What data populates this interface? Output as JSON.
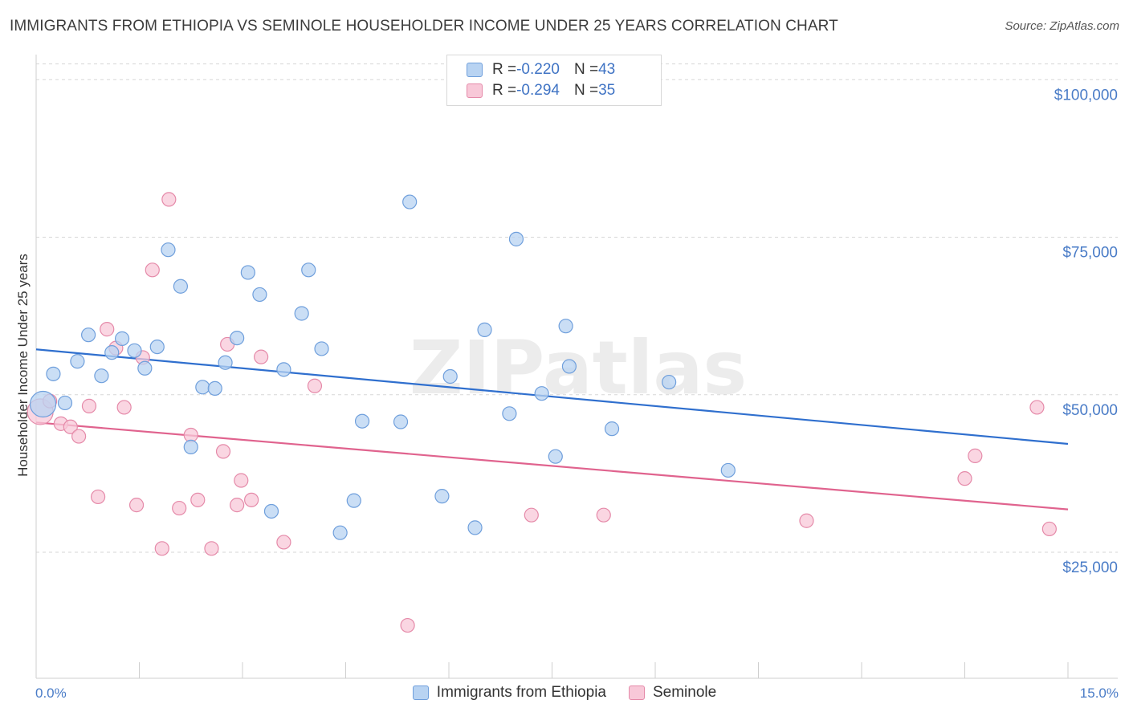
{
  "header": {
    "title": "IMMIGRANTS FROM ETHIOPIA VS SEMINOLE HOUSEHOLDER INCOME UNDER 25 YEARS CORRELATION CHART",
    "source": "Source: ZipAtlas.com"
  },
  "legend": {
    "rows": [
      {
        "r_label": "R = ",
        "r_value": "-0.220",
        "n_label": "N = ",
        "n_value": "43"
      },
      {
        "r_label": "R = ",
        "r_value": "-0.294",
        "n_label": "N = ",
        "n_value": "35"
      }
    ]
  },
  "bottom_legend": [
    "Immigrants from Ethiopia",
    "Seminole"
  ],
  "watermark": "ZIPatlas",
  "colors": {
    "blue_fill": "#b8d3f2",
    "blue_stroke": "#6f9fdc",
    "blue_line": "#2f6fce",
    "pink_fill": "#f8c8d8",
    "pink_stroke": "#e58aa9",
    "pink_line": "#e0638e",
    "tick_text": "#4a7cc7",
    "grid": "#d7d7d7"
  },
  "chart_data": {
    "type": "scatter",
    "title": "IMMIGRANTS FROM ETHIOPIA VS SEMINOLE HOUSEHOLDER INCOME UNDER 25 YEARS CORRELATION CHART",
    "xlabel": "",
    "ylabel": "Householder Income Under 25 years",
    "xlim": [
      0,
      15
    ],
    "ylim": [
      5000,
      105000
    ],
    "x_tick_labels": [
      "0.0%",
      "15.0%"
    ],
    "y_ticks": [
      25000,
      50000,
      75000,
      100000
    ],
    "y_tick_labels": [
      "$25,000",
      "$50,000",
      "$75,000",
      "$100,000"
    ],
    "grid": true,
    "legend_position": "top-center",
    "series": [
      {
        "name": "Immigrants from Ethiopia",
        "trend": {
          "x": [
            0,
            15
          ],
          "y": [
            57200,
            42200
          ]
        },
        "points": [
          {
            "x": 0.1,
            "y": 48500
          },
          {
            "x": 0.25,
            "y": 53300
          },
          {
            "x": 0.42,
            "y": 48700
          },
          {
            "x": 0.6,
            "y": 55300
          },
          {
            "x": 0.76,
            "y": 59500
          },
          {
            "x": 0.95,
            "y": 53000
          },
          {
            "x": 1.1,
            "y": 56700
          },
          {
            "x": 1.25,
            "y": 58900
          },
          {
            "x": 1.43,
            "y": 57000
          },
          {
            "x": 1.58,
            "y": 54200
          },
          {
            "x": 1.76,
            "y": 57600
          },
          {
            "x": 1.92,
            "y": 73000
          },
          {
            "x": 2.1,
            "y": 67200
          },
          {
            "x": 2.25,
            "y": 41700
          },
          {
            "x": 2.42,
            "y": 51200
          },
          {
            "x": 2.6,
            "y": 51000
          },
          {
            "x": 2.75,
            "y": 55100
          },
          {
            "x": 2.92,
            "y": 59000
          },
          {
            "x": 3.08,
            "y": 69400
          },
          {
            "x": 3.25,
            "y": 65900
          },
          {
            "x": 3.42,
            "y": 31500
          },
          {
            "x": 3.6,
            "y": 54000
          },
          {
            "x": 3.86,
            "y": 62900
          },
          {
            "x": 3.96,
            "y": 69800
          },
          {
            "x": 4.15,
            "y": 57300
          },
          {
            "x": 4.42,
            "y": 28100
          },
          {
            "x": 4.62,
            "y": 33200
          },
          {
            "x": 4.74,
            "y": 45800
          },
          {
            "x": 5.3,
            "y": 45700
          },
          {
            "x": 5.43,
            "y": 80600
          },
          {
            "x": 5.9,
            "y": 33900
          },
          {
            "x": 6.02,
            "y": 52900
          },
          {
            "x": 6.38,
            "y": 28900
          },
          {
            "x": 6.52,
            "y": 60300
          },
          {
            "x": 6.88,
            "y": 47000
          },
          {
            "x": 6.98,
            "y": 74700
          },
          {
            "x": 7.35,
            "y": 50200
          },
          {
            "x": 7.55,
            "y": 40200
          },
          {
            "x": 7.7,
            "y": 60900
          },
          {
            "x": 7.75,
            "y": 54500
          },
          {
            "x": 8.37,
            "y": 44600
          },
          {
            "x": 9.2,
            "y": 52000
          },
          {
            "x": 10.06,
            "y": 38000
          }
        ]
      },
      {
        "name": "Seminole",
        "trend": {
          "x": [
            0,
            15
          ],
          "y": [
            45600,
            31800
          ]
        },
        "points": [
          {
            "x": 0.06,
            "y": 47300
          },
          {
            "x": 0.2,
            "y": 49000
          },
          {
            "x": 0.36,
            "y": 45400
          },
          {
            "x": 0.5,
            "y": 44900
          },
          {
            "x": 0.62,
            "y": 43400
          },
          {
            "x": 0.77,
            "y": 48200
          },
          {
            "x": 0.9,
            "y": 33800
          },
          {
            "x": 1.03,
            "y": 60400
          },
          {
            "x": 1.16,
            "y": 57400
          },
          {
            "x": 1.28,
            "y": 48000
          },
          {
            "x": 1.46,
            "y": 32500
          },
          {
            "x": 1.55,
            "y": 55900
          },
          {
            "x": 1.69,
            "y": 69800
          },
          {
            "x": 1.83,
            "y": 25600
          },
          {
            "x": 1.93,
            "y": 81000
          },
          {
            "x": 2.08,
            "y": 32000
          },
          {
            "x": 2.25,
            "y": 43600
          },
          {
            "x": 2.35,
            "y": 33300
          },
          {
            "x": 2.55,
            "y": 25600
          },
          {
            "x": 2.72,
            "y": 41000
          },
          {
            "x": 2.78,
            "y": 58000
          },
          {
            "x": 2.92,
            "y": 32500
          },
          {
            "x": 2.98,
            "y": 36400
          },
          {
            "x": 3.13,
            "y": 33300
          },
          {
            "x": 3.27,
            "y": 56000
          },
          {
            "x": 3.6,
            "y": 26600
          },
          {
            "x": 4.05,
            "y": 51400
          },
          {
            "x": 5.4,
            "y": 13400
          },
          {
            "x": 7.2,
            "y": 30900
          },
          {
            "x": 8.25,
            "y": 30900
          },
          {
            "x": 11.2,
            "y": 30000
          },
          {
            "x": 13.5,
            "y": 36700
          },
          {
            "x": 13.65,
            "y": 40300
          },
          {
            "x": 14.55,
            "y": 48000
          },
          {
            "x": 14.73,
            "y": 28700
          }
        ]
      }
    ]
  }
}
